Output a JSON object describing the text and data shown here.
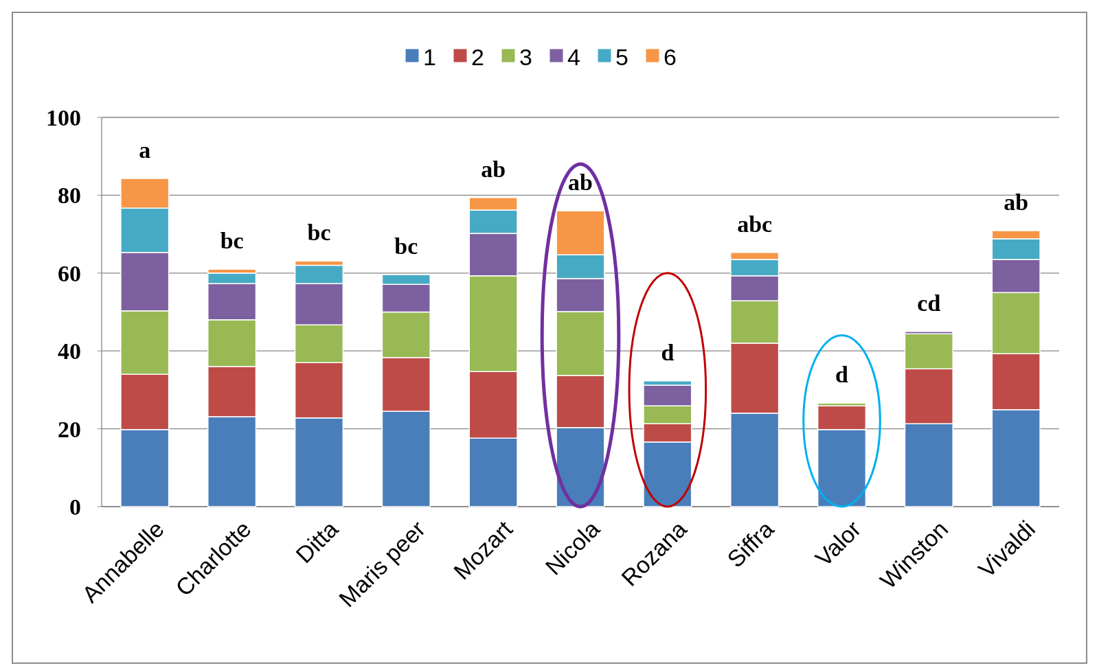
{
  "chart_data": {
    "type": "bar",
    "stacked": true,
    "categories": [
      "Annabelle",
      "Charlotte",
      "Ditta",
      "Maris peer",
      "Mozart",
      "Nicola",
      "Rozana",
      "Siffra",
      "Valor",
      "Winston",
      "Vivaldi"
    ],
    "series": [
      {
        "name": "1",
        "color": "#4a7ebb",
        "values": [
          19.8,
          23.1,
          22.8,
          24.5,
          17.6,
          20.3,
          16.6,
          24,
          19.8,
          21.3,
          24.9
        ]
      },
      {
        "name": "2",
        "color": "#be4b48",
        "values": [
          14.2,
          12.9,
          14.2,
          13.8,
          17.1,
          13.4,
          4.7,
          18,
          6.1,
          14.1,
          14.4
        ]
      },
      {
        "name": "3",
        "color": "#98b954",
        "values": [
          16.3,
          12,
          9.7,
          11.7,
          24.6,
          16.4,
          4.6,
          10.9,
          0.7,
          9,
          15.7
        ]
      },
      {
        "name": "4",
        "color": "#7d60a0",
        "values": [
          15,
          9.3,
          10.6,
          7.1,
          10.9,
          8.5,
          5.3,
          6.4,
          0,
          0.6,
          8.5
        ]
      },
      {
        "name": "5",
        "color": "#46aac5",
        "values": [
          11.4,
          2.7,
          4.7,
          2.5,
          6,
          6.1,
          1.1,
          4.2,
          0,
          0,
          5.3
        ]
      },
      {
        "name": "6",
        "color": "#f79646",
        "values": [
          7.6,
          1,
          1.1,
          0,
          3.2,
          11.3,
          0,
          1.8,
          0,
          0,
          2.1
        ]
      }
    ],
    "ylim": [
      0,
      100
    ],
    "yticks": [
      0,
      20,
      40,
      60,
      80,
      100
    ],
    "grid": "y",
    "legend": "top",
    "annotations": [
      {
        "text": "a",
        "x": "Annabelle",
        "y": 84.3
      },
      {
        "text": "bc",
        "x": "Charlotte",
        "y": 61
      },
      {
        "text": "bc",
        "x": "Ditta",
        "y": 63.1
      },
      {
        "text": "bc",
        "x": "Maris peer",
        "y": 59.6
      },
      {
        "text": "ab",
        "x": "Mozart",
        "y": 79.4
      },
      {
        "text": "ab",
        "x": "Nicola",
        "y": 76
      },
      {
        "text": "d",
        "x": "Rozana",
        "y": 32.3
      },
      {
        "text": "abc",
        "x": "Siffra",
        "y": 65.3
      },
      {
        "text": "d",
        "x": "Valor",
        "y": 26.6
      },
      {
        "text": "cd",
        "x": "Winston",
        "y": 45
      },
      {
        "text": "ab",
        "x": "Vivaldi",
        "y": 70.9
      }
    ]
  }
}
